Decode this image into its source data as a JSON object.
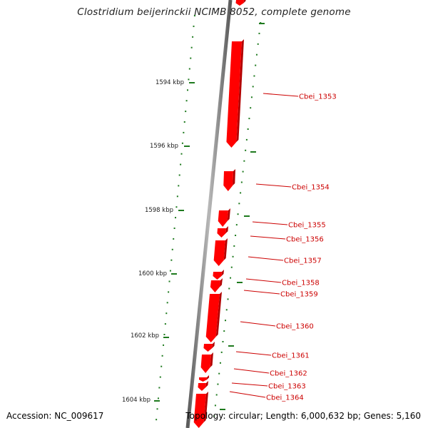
{
  "title": "Clostridium beijerinckii NCIMB 8052, complete genome",
  "accession": "Accession: NC_009617",
  "stats": "Topology: circular; Length: 6,000,632 bp; Genes: 5,160",
  "colors": {
    "gene": "#ff0000",
    "gene_label": "#cc0000",
    "tick": "#1e7a1e",
    "backbone": "#808080"
  },
  "scale_labels": [
    "1594 kbp",
    "1596 kbp",
    "1598 kbp",
    "1600 kbp",
    "1602 kbp",
    "1604 kbp"
  ],
  "genes": [
    "Cbei_1353",
    "Cbei_1354",
    "Cbei_1355",
    "Cbei_1356",
    "Cbei_1357",
    "Cbei_1358",
    "Cbei_1359",
    "Cbei_1360",
    "Cbei_1361",
    "Cbei_1362",
    "Cbei_1363",
    "Cbei_1364"
  ]
}
